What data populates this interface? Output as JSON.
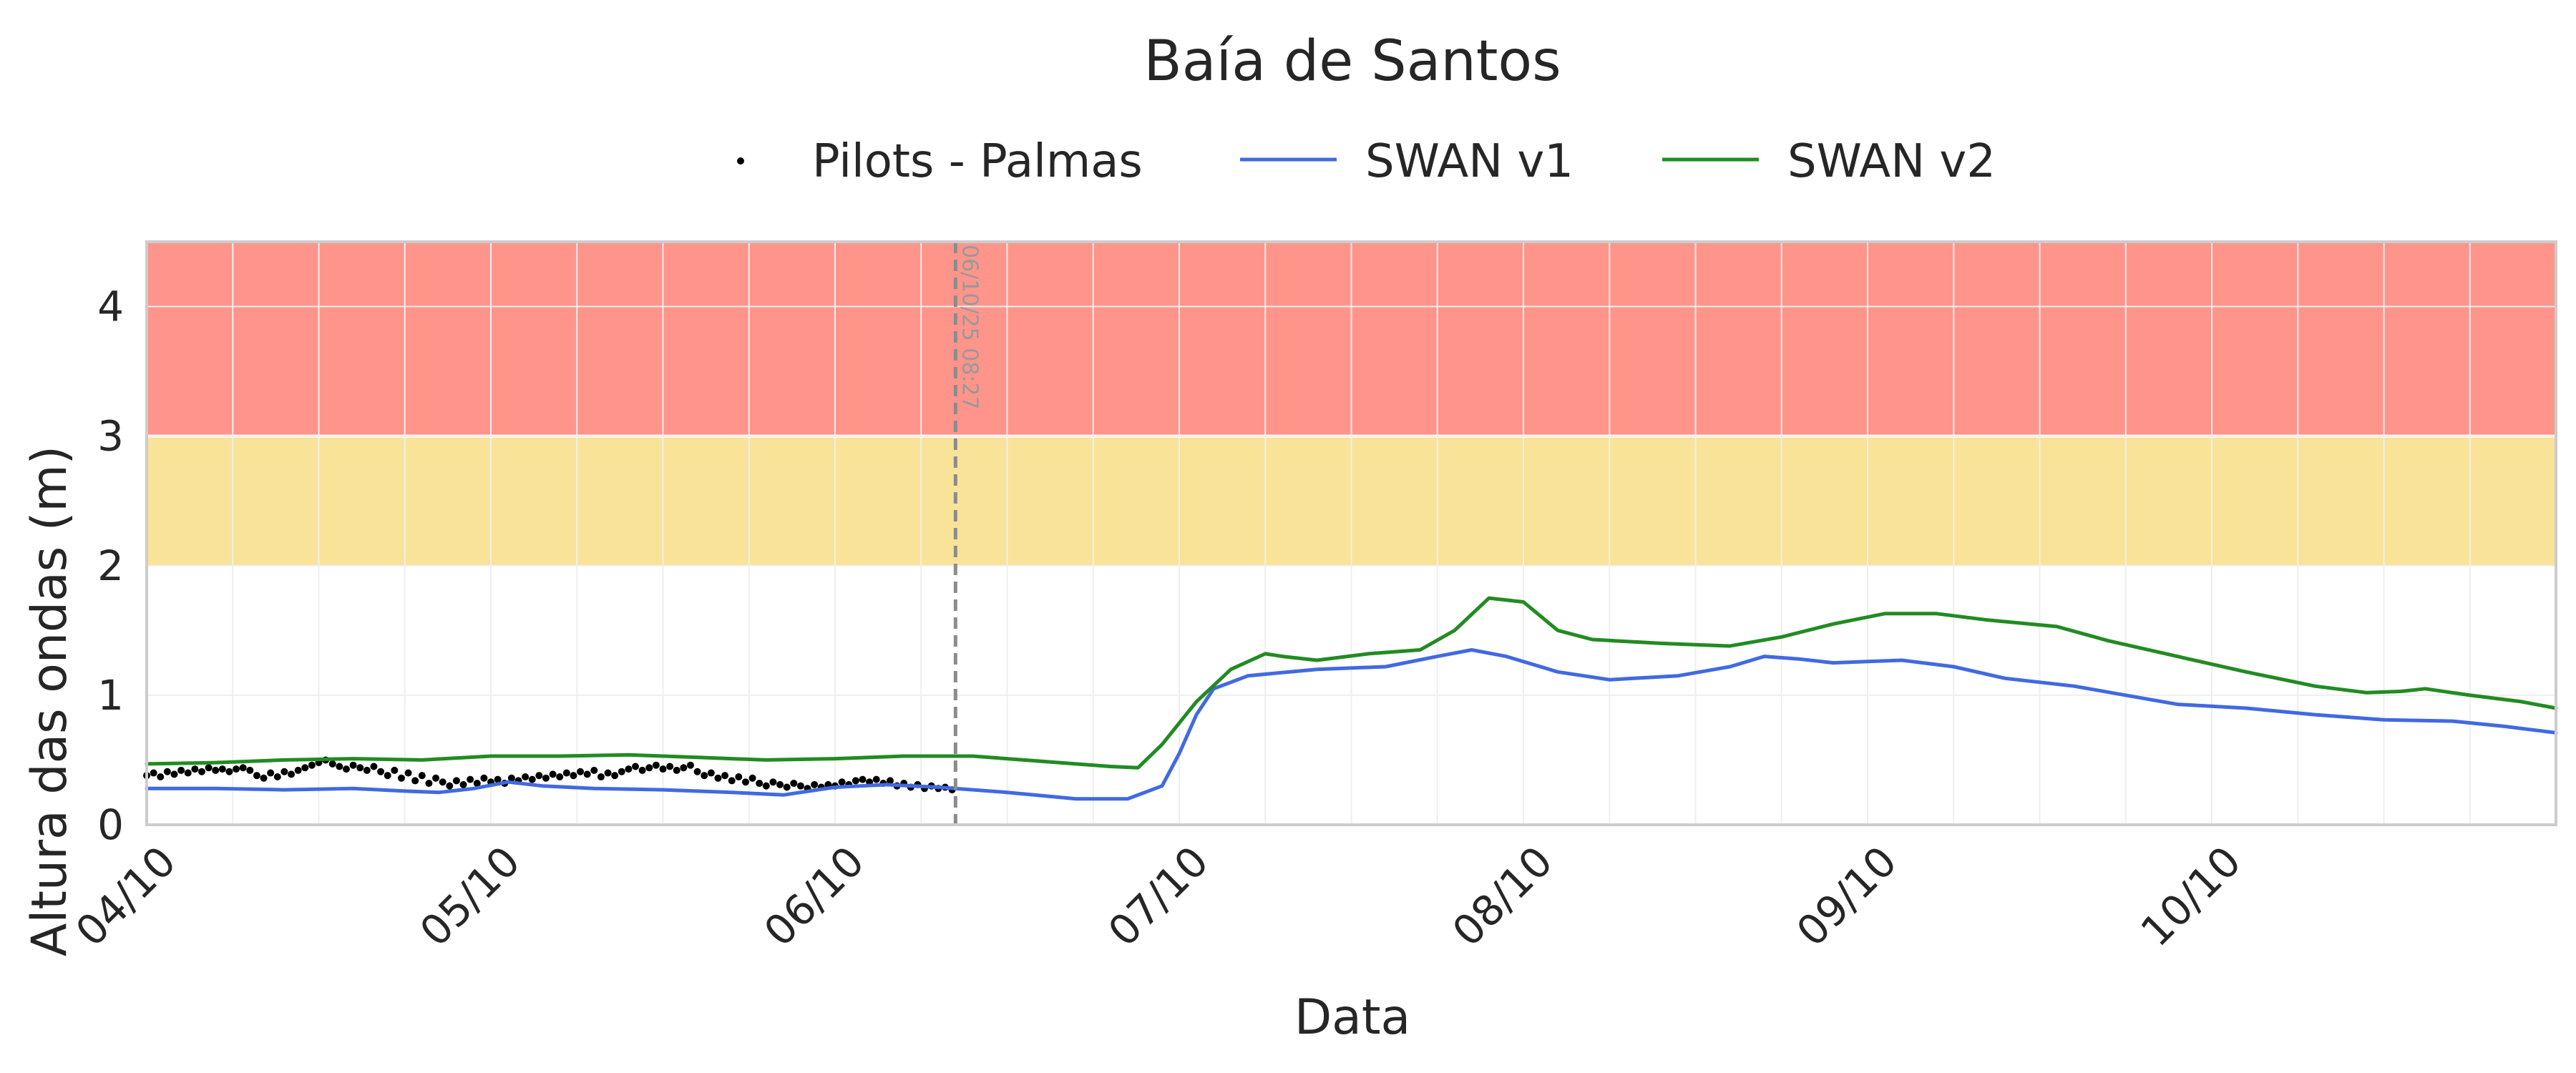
{
  "chart_data": {
    "type": "line",
    "title": "Baía de Santos",
    "xlabel": "Data",
    "ylabel": "Altura das ondas (m)",
    "ylim": [
      0,
      4.5
    ],
    "yticks": [
      "0",
      "1",
      "2",
      "3",
      "4"
    ],
    "xlim_days": [
      4.0,
      11.0
    ],
    "xticks": [
      {
        "day": 4,
        "label": "04/10"
      },
      {
        "day": 5,
        "label": "05/10"
      },
      {
        "day": 6,
        "label": "06/10"
      },
      {
        "day": 7,
        "label": "07/10"
      },
      {
        "day": 8,
        "label": "08/10"
      },
      {
        "day": 9,
        "label": "09/10"
      },
      {
        "day": 10,
        "label": "10/10"
      }
    ],
    "grid": true,
    "legend_position": "top-center",
    "bands": [
      {
        "from": 2,
        "to": 3,
        "color": "#f9e399"
      },
      {
        "from": 3,
        "to": 4.5,
        "color": "#ff958a"
      }
    ],
    "marker": {
      "day": 6.35,
      "label": "06/10/25 08:27",
      "color": "#8c8c8c"
    },
    "series": [
      {
        "name": "Pilots - Palmas",
        "kind": "scatter",
        "color": "#000000",
        "points": [
          [
            4.0,
            0.38
          ],
          [
            4.02,
            0.4
          ],
          [
            4.04,
            0.37
          ],
          [
            4.06,
            0.41
          ],
          [
            4.08,
            0.39
          ],
          [
            4.1,
            0.42
          ],
          [
            4.12,
            0.4
          ],
          [
            4.14,
            0.43
          ],
          [
            4.16,
            0.41
          ],
          [
            4.18,
            0.44
          ],
          [
            4.2,
            0.42
          ],
          [
            4.22,
            0.43
          ],
          [
            4.24,
            0.41
          ],
          [
            4.26,
            0.43
          ],
          [
            4.28,
            0.44
          ],
          [
            4.3,
            0.42
          ],
          [
            4.32,
            0.38
          ],
          [
            4.34,
            0.36
          ],
          [
            4.36,
            0.4
          ],
          [
            4.38,
            0.37
          ],
          [
            4.4,
            0.41
          ],
          [
            4.42,
            0.39
          ],
          [
            4.44,
            0.42
          ],
          [
            4.46,
            0.44
          ],
          [
            4.48,
            0.46
          ],
          [
            4.5,
            0.48
          ],
          [
            4.52,
            0.5
          ],
          [
            4.54,
            0.47
          ],
          [
            4.56,
            0.45
          ],
          [
            4.58,
            0.43
          ],
          [
            4.6,
            0.46
          ],
          [
            4.62,
            0.44
          ],
          [
            4.64,
            0.42
          ],
          [
            4.66,
            0.45
          ],
          [
            4.68,
            0.41
          ],
          [
            4.7,
            0.38
          ],
          [
            4.72,
            0.42
          ],
          [
            4.74,
            0.36
          ],
          [
            4.76,
            0.4
          ],
          [
            4.78,
            0.34
          ],
          [
            4.8,
            0.38
          ],
          [
            4.82,
            0.32
          ],
          [
            4.84,
            0.36
          ],
          [
            4.86,
            0.33
          ],
          [
            4.88,
            0.3
          ],
          [
            4.9,
            0.34
          ],
          [
            4.92,
            0.31
          ],
          [
            4.94,
            0.35
          ],
          [
            4.96,
            0.32
          ],
          [
            4.98,
            0.36
          ],
          [
            5.0,
            0.33
          ],
          [
            5.02,
            0.35
          ],
          [
            5.04,
            0.32
          ],
          [
            5.06,
            0.36
          ],
          [
            5.08,
            0.34
          ],
          [
            5.1,
            0.37
          ],
          [
            5.12,
            0.35
          ],
          [
            5.14,
            0.38
          ],
          [
            5.16,
            0.36
          ],
          [
            5.18,
            0.39
          ],
          [
            5.2,
            0.37
          ],
          [
            5.22,
            0.4
          ],
          [
            5.24,
            0.38
          ],
          [
            5.26,
            0.41
          ],
          [
            5.28,
            0.39
          ],
          [
            5.3,
            0.42
          ],
          [
            5.32,
            0.37
          ],
          [
            5.34,
            0.4
          ],
          [
            5.36,
            0.38
          ],
          [
            5.38,
            0.41
          ],
          [
            5.4,
            0.43
          ],
          [
            5.42,
            0.45
          ],
          [
            5.44,
            0.42
          ],
          [
            5.46,
            0.44
          ],
          [
            5.48,
            0.46
          ],
          [
            5.5,
            0.43
          ],
          [
            5.52,
            0.45
          ],
          [
            5.54,
            0.42
          ],
          [
            5.56,
            0.44
          ],
          [
            5.58,
            0.46
          ],
          [
            5.6,
            0.41
          ],
          [
            5.62,
            0.38
          ],
          [
            5.64,
            0.4
          ],
          [
            5.66,
            0.36
          ],
          [
            5.68,
            0.38
          ],
          [
            5.7,
            0.34
          ],
          [
            5.72,
            0.37
          ],
          [
            5.74,
            0.33
          ],
          [
            5.76,
            0.36
          ],
          [
            5.78,
            0.32
          ],
          [
            5.8,
            0.3
          ],
          [
            5.82,
            0.33
          ],
          [
            5.84,
            0.31
          ],
          [
            5.86,
            0.29
          ],
          [
            5.88,
            0.32
          ],
          [
            5.9,
            0.3
          ],
          [
            5.92,
            0.28
          ],
          [
            5.94,
            0.31
          ],
          [
            5.96,
            0.29
          ],
          [
            5.98,
            0.31
          ],
          [
            6.0,
            0.3
          ],
          [
            6.02,
            0.33
          ],
          [
            6.04,
            0.31
          ],
          [
            6.06,
            0.34
          ],
          [
            6.08,
            0.35
          ],
          [
            6.1,
            0.33
          ],
          [
            6.12,
            0.35
          ],
          [
            6.14,
            0.32
          ],
          [
            6.16,
            0.34
          ],
          [
            6.18,
            0.3
          ],
          [
            6.2,
            0.32
          ],
          [
            6.22,
            0.29
          ],
          [
            6.24,
            0.31
          ],
          [
            6.26,
            0.28
          ],
          [
            6.28,
            0.3
          ],
          [
            6.3,
            0.28
          ],
          [
            6.32,
            0.29
          ],
          [
            6.34,
            0.27
          ]
        ]
      },
      {
        "name": "SWAN v1",
        "kind": "line",
        "color": "#4169e1",
        "points": [
          [
            4.0,
            0.28
          ],
          [
            4.2,
            0.28
          ],
          [
            4.4,
            0.27
          ],
          [
            4.6,
            0.28
          ],
          [
            4.75,
            0.26
          ],
          [
            4.85,
            0.25
          ],
          [
            4.95,
            0.28
          ],
          [
            5.05,
            0.33
          ],
          [
            5.15,
            0.3
          ],
          [
            5.3,
            0.28
          ],
          [
            5.5,
            0.27
          ],
          [
            5.7,
            0.25
          ],
          [
            5.85,
            0.23
          ],
          [
            6.0,
            0.29
          ],
          [
            6.15,
            0.31
          ],
          [
            6.3,
            0.29
          ],
          [
            6.5,
            0.25
          ],
          [
            6.7,
            0.2
          ],
          [
            6.85,
            0.2
          ],
          [
            6.95,
            0.3
          ],
          [
            7.0,
            0.55
          ],
          [
            7.05,
            0.85
          ],
          [
            7.1,
            1.05
          ],
          [
            7.2,
            1.15
          ],
          [
            7.4,
            1.2
          ],
          [
            7.6,
            1.22
          ],
          [
            7.75,
            1.3
          ],
          [
            7.85,
            1.35
          ],
          [
            7.95,
            1.3
          ],
          [
            8.1,
            1.18
          ],
          [
            8.25,
            1.12
          ],
          [
            8.45,
            1.15
          ],
          [
            8.6,
            1.22
          ],
          [
            8.7,
            1.3
          ],
          [
            8.8,
            1.28
          ],
          [
            8.9,
            1.25
          ],
          [
            9.0,
            1.26
          ],
          [
            9.1,
            1.27
          ],
          [
            9.25,
            1.22
          ],
          [
            9.4,
            1.13
          ],
          [
            9.6,
            1.07
          ],
          [
            9.75,
            1.0
          ],
          [
            9.9,
            0.93
          ],
          [
            10.1,
            0.9
          ],
          [
            10.3,
            0.85
          ],
          [
            10.5,
            0.81
          ],
          [
            10.7,
            0.8
          ],
          [
            10.85,
            0.76
          ],
          [
            11.0,
            0.71
          ]
        ]
      },
      {
        "name": "SWAN v2",
        "kind": "line",
        "color": "#228b22",
        "points": [
          [
            4.0,
            0.47
          ],
          [
            4.2,
            0.48
          ],
          [
            4.4,
            0.5
          ],
          [
            4.6,
            0.51
          ],
          [
            4.8,
            0.5
          ],
          [
            5.0,
            0.53
          ],
          [
            5.2,
            0.53
          ],
          [
            5.4,
            0.54
          ],
          [
            5.6,
            0.52
          ],
          [
            5.8,
            0.5
          ],
          [
            6.0,
            0.51
          ],
          [
            6.2,
            0.53
          ],
          [
            6.4,
            0.53
          ],
          [
            6.6,
            0.49
          ],
          [
            6.8,
            0.45
          ],
          [
            6.88,
            0.44
          ],
          [
            6.95,
            0.62
          ],
          [
            7.05,
            0.95
          ],
          [
            7.15,
            1.2
          ],
          [
            7.25,
            1.32
          ],
          [
            7.3,
            1.3
          ],
          [
            7.4,
            1.27
          ],
          [
            7.55,
            1.32
          ],
          [
            7.7,
            1.35
          ],
          [
            7.8,
            1.5
          ],
          [
            7.9,
            1.75
          ],
          [
            8.0,
            1.72
          ],
          [
            8.1,
            1.5
          ],
          [
            8.2,
            1.43
          ],
          [
            8.4,
            1.4
          ],
          [
            8.6,
            1.38
          ],
          [
            8.75,
            1.45
          ],
          [
            8.9,
            1.55
          ],
          [
            9.05,
            1.63
          ],
          [
            9.2,
            1.63
          ],
          [
            9.35,
            1.58
          ],
          [
            9.55,
            1.53
          ],
          [
            9.7,
            1.42
          ],
          [
            9.9,
            1.3
          ],
          [
            10.1,
            1.18
          ],
          [
            10.3,
            1.07
          ],
          [
            10.45,
            1.02
          ],
          [
            10.55,
            1.03
          ],
          [
            10.62,
            1.05
          ],
          [
            10.75,
            1.0
          ],
          [
            10.9,
            0.95
          ],
          [
            11.0,
            0.9
          ]
        ]
      }
    ]
  }
}
